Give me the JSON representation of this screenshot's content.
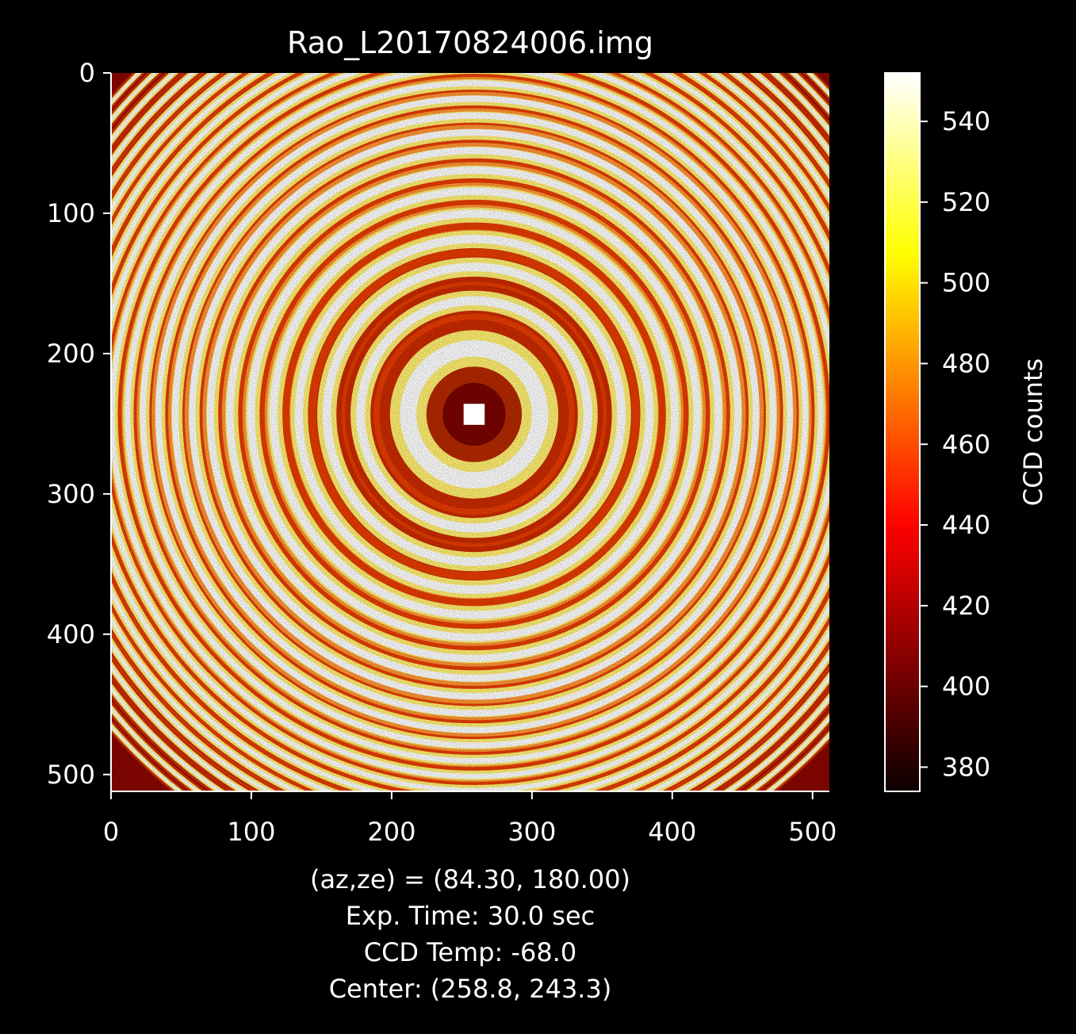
{
  "chart_data": {
    "type": "heatmap",
    "title": "Rao_L20170824006.img",
    "image_size": [
      512,
      512
    ],
    "xlim": [
      0,
      512
    ],
    "ylim": [
      512,
      0
    ],
    "x_ticks": [
      0,
      100,
      200,
      300,
      400,
      500
    ],
    "y_ticks": [
      0,
      100,
      200,
      300,
      400,
      500
    ],
    "colormap": "hot",
    "colorbar": {
      "label": "CCD counts",
      "range": [
        374,
        552
      ],
      "ticks": [
        380,
        400,
        420,
        440,
        460,
        480,
        500,
        520,
        540
      ]
    },
    "center": [
      258.8,
      243.3
    ],
    "fringe_radii_px": [
      47,
      81,
      105,
      125,
      143,
      159,
      174,
      188,
      201,
      213,
      225,
      236,
      247,
      258,
      268,
      278,
      288,
      297,
      306,
      315,
      324,
      333,
      341
    ],
    "annotations": [
      "(az,ze) = (84.30, 180.00)",
      "Exp. Time: 30.0 sec",
      "CCD Temp: -68.0",
      "Center: (258.8, 243.3)"
    ],
    "colors": {
      "background": "#000000",
      "axes": "#ffffff",
      "cmap_low": "#0b0000",
      "cmap_mid": "#ff2000",
      "cmap_high": "#ffffff"
    }
  }
}
